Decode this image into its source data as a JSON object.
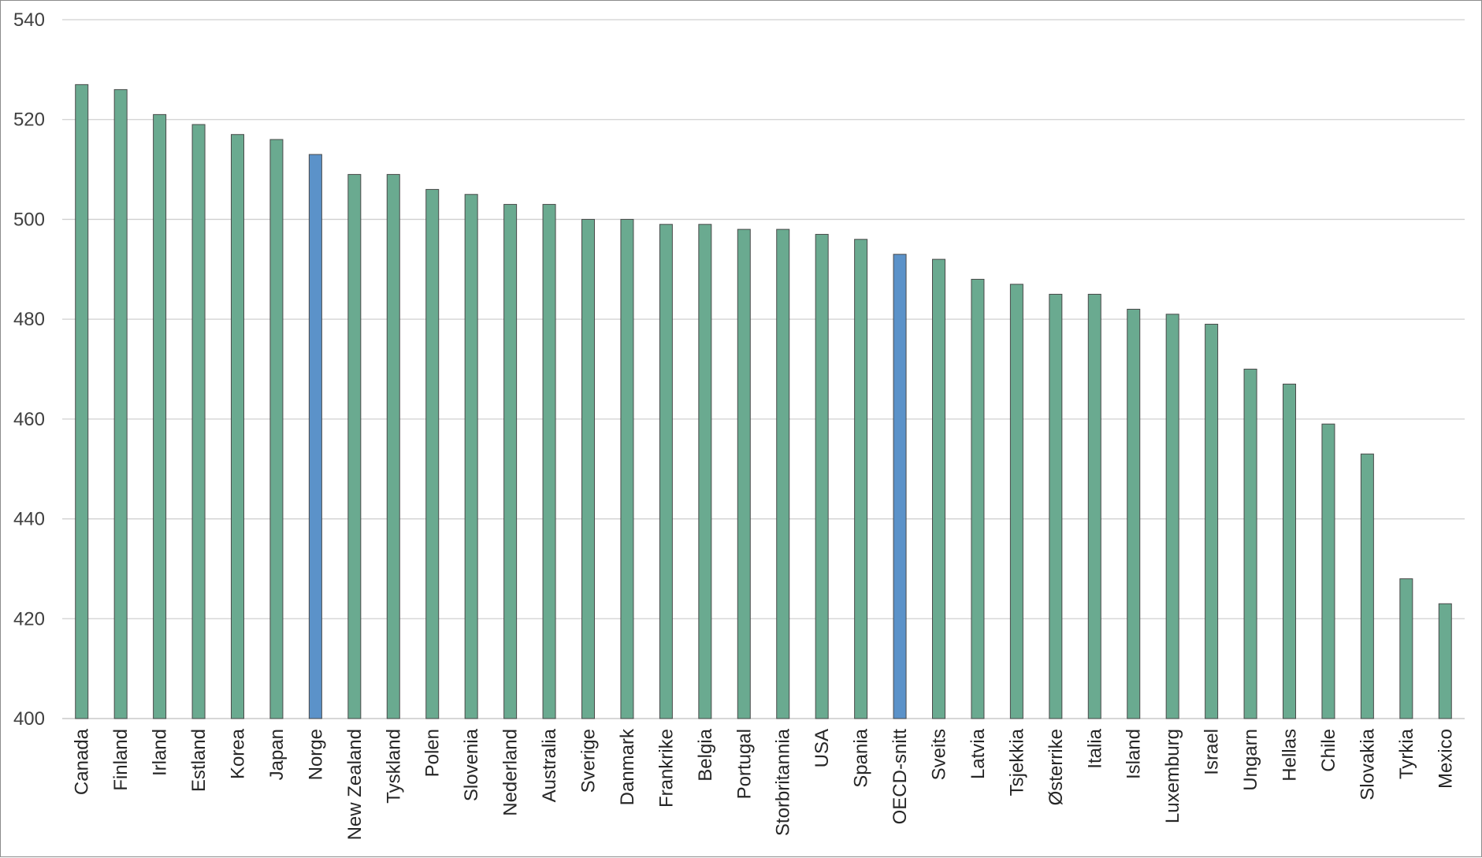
{
  "chart_data": {
    "type": "bar",
    "ylim": [
      400,
      540
    ],
    "yticks": [
      400,
      420,
      440,
      460,
      480,
      500,
      520,
      540
    ],
    "grid": true,
    "colors": {
      "default": "#6aaa90",
      "highlight": "#5b92c9",
      "edge": "#4a4a4a",
      "grid": "#d0d0d0"
    },
    "highlight": [
      "Norge",
      "OECD-snitt"
    ],
    "categories": [
      "Canada",
      "Finland",
      "Irland",
      "Estland",
      "Korea",
      "Japan",
      "Norge",
      "New Zealand",
      "Tyskland",
      "Polen",
      "Slovenia",
      "Nederland",
      "Australia",
      "Sverige",
      "Danmark",
      "Frankrike",
      "Belgia",
      "Portugal",
      "Storbritannia",
      "USA",
      "Spania",
      "OECD-snitt",
      "Sveits",
      "Latvia",
      "Tsjekkia",
      "Østerrike",
      "Italia",
      "Island",
      "Luxemburg",
      "Israel",
      "Ungarn",
      "Hellas",
      "Chile",
      "Slovakia",
      "Tyrkia",
      "Mexico"
    ],
    "values": [
      527,
      526,
      521,
      519,
      517,
      516,
      513,
      509,
      509,
      506,
      505,
      503,
      503,
      500,
      500,
      499,
      499,
      498,
      498,
      497,
      496,
      493,
      492,
      488,
      487,
      485,
      485,
      482,
      481,
      479,
      470,
      467,
      459,
      453,
      428,
      423
    ]
  }
}
